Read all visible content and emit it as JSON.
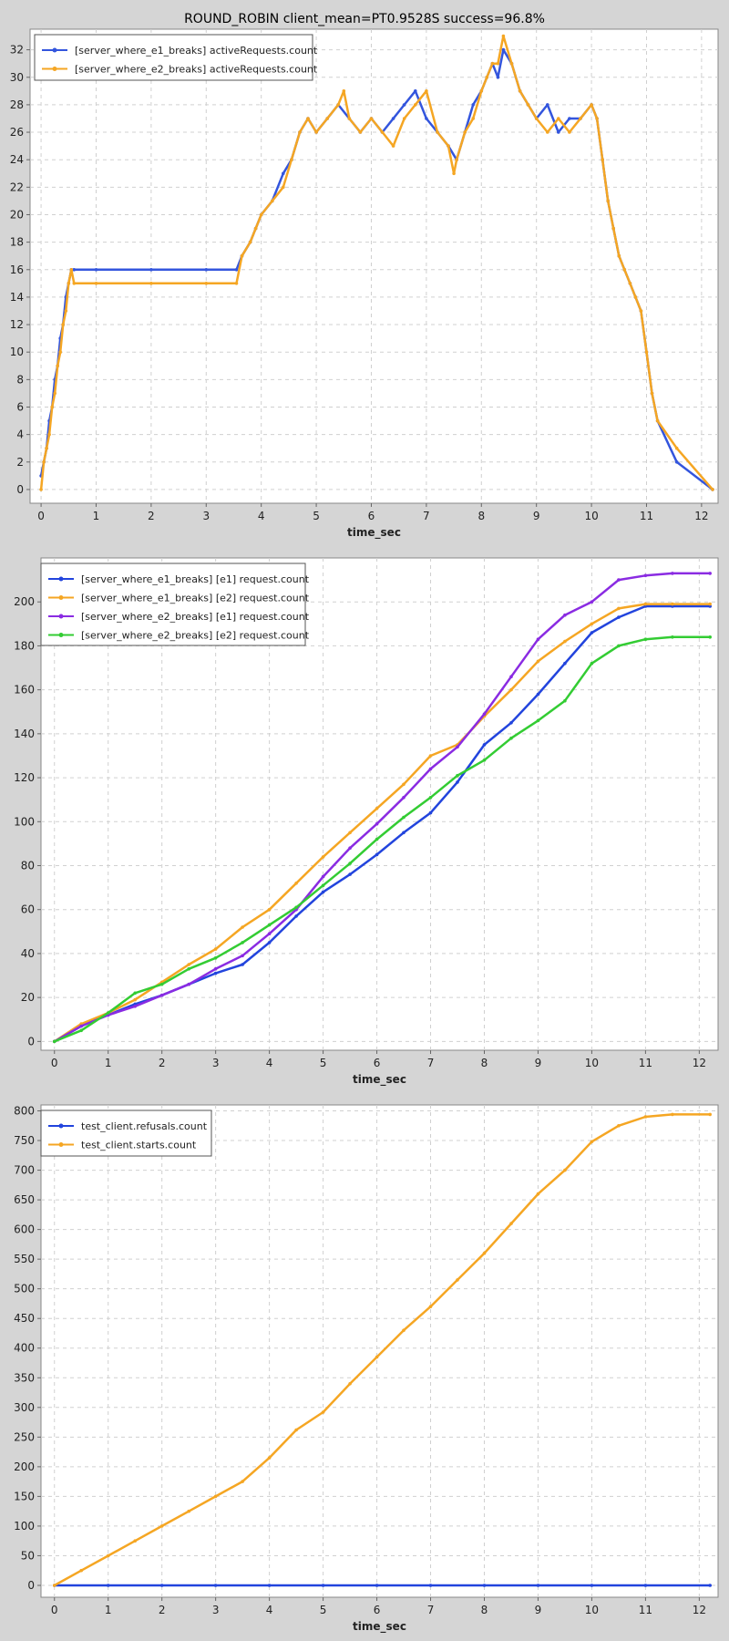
{
  "title": "ROUND_ROBIN client_mean=PT0.9528S success=96.8%",
  "chart_data": [
    {
      "type": "line",
      "xlabel": "time_sec",
      "ylabel": "",
      "xlim": [
        -0.2,
        12.3
      ],
      "ylim": [
        -1,
        33.5
      ],
      "xticks": [
        0,
        1,
        2,
        3,
        4,
        5,
        6,
        7,
        8,
        9,
        10,
        11,
        12
      ],
      "yticks": [
        0,
        2,
        4,
        6,
        8,
        10,
        12,
        14,
        16,
        18,
        20,
        22,
        24,
        26,
        28,
        30,
        32
      ],
      "grid": true,
      "legend_position": "top-left",
      "series": [
        {
          "name": "[server_where_e1_breaks] activeRequests.count",
          "color": "#3355dd",
          "x": [
            0,
            0.05,
            0.1,
            0.15,
            0.2,
            0.25,
            0.3,
            0.35,
            0.4,
            0.45,
            0.5,
            0.55,
            0.6,
            1.0,
            2.0,
            3.0,
            3.55,
            3.65,
            3.8,
            3.9,
            4.0,
            4.2,
            4.4,
            4.55,
            4.7,
            4.85,
            5.0,
            5.2,
            5.4,
            5.6,
            5.8,
            6.0,
            6.2,
            6.4,
            6.6,
            6.8,
            7.0,
            7.2,
            7.4,
            7.55,
            7.7,
            7.85,
            8.0,
            8.1,
            8.2,
            8.3,
            8.4,
            8.55,
            8.7,
            8.85,
            9.0,
            9.2,
            9.4,
            9.6,
            9.8,
            10.0,
            10.1,
            10.2,
            10.3,
            10.4,
            10.5,
            10.6,
            10.7,
            10.8,
            10.9,
            11.0,
            11.1,
            11.2,
            11.55,
            12.2
          ],
          "y": [
            1,
            2,
            3,
            5,
            6,
            8,
            9,
            11,
            12,
            14,
            15,
            16,
            16,
            16,
            16,
            16,
            16,
            17,
            18,
            19,
            20,
            21,
            23,
            24,
            26,
            27,
            26,
            27,
            28,
            27,
            26,
            27,
            26,
            27,
            28,
            29,
            27,
            26,
            25,
            24,
            26,
            28,
            29,
            30,
            31,
            30,
            32,
            31,
            29,
            28,
            27,
            28,
            26,
            27,
            27,
            28,
            27,
            24,
            21,
            19,
            17,
            16,
            15,
            14,
            13,
            10,
            7,
            5,
            2,
            0
          ]
        },
        {
          "name": "[server_where_e2_breaks] activeRequests.count",
          "color": "#f5a623",
          "x": [
            0,
            0.05,
            0.1,
            0.15,
            0.2,
            0.25,
            0.3,
            0.35,
            0.4,
            0.45,
            0.5,
            0.55,
            0.6,
            1.0,
            2.0,
            3.0,
            3.55,
            3.65,
            3.8,
            3.9,
            4.0,
            4.2,
            4.4,
            4.55,
            4.7,
            4.85,
            5.0,
            5.2,
            5.4,
            5.5,
            5.6,
            5.8,
            6.0,
            6.2,
            6.4,
            6.6,
            6.8,
            7.0,
            7.2,
            7.4,
            7.5,
            7.55,
            7.7,
            7.85,
            8.0,
            8.1,
            8.2,
            8.3,
            8.4,
            8.55,
            8.7,
            8.85,
            9.0,
            9.2,
            9.4,
            9.6,
            9.8,
            10.0,
            10.1,
            10.2,
            10.3,
            10.4,
            10.5,
            10.6,
            10.7,
            10.8,
            10.9,
            11.0,
            11.1,
            11.2,
            11.55,
            12.2
          ],
          "y": [
            0,
            2,
            3,
            4,
            6,
            7,
            9,
            10,
            12,
            13,
            15,
            16,
            15,
            15,
            15,
            15,
            15,
            17,
            18,
            19,
            20,
            21,
            22,
            24,
            26,
            27,
            26,
            27,
            28,
            29,
            27,
            26,
            27,
            26,
            25,
            27,
            28,
            29,
            26,
            25,
            23,
            24,
            26,
            27,
            29,
            30,
            31,
            31,
            33,
            31,
            29,
            28,
            27,
            26,
            27,
            26,
            27,
            28,
            27,
            24,
            21,
            19,
            17,
            16,
            15,
            14,
            13,
            10,
            7,
            5,
            3,
            0
          ]
        }
      ]
    },
    {
      "type": "line",
      "xlabel": "time_sec",
      "ylabel": "",
      "xlim": [
        -0.25,
        12.35
      ],
      "ylim": [
        -4,
        220
      ],
      "xticks": [
        0,
        1,
        2,
        3,
        4,
        5,
        6,
        7,
        8,
        9,
        10,
        11,
        12
      ],
      "yticks": [
        0,
        20,
        40,
        60,
        80,
        100,
        120,
        140,
        160,
        180,
        200
      ],
      "grid": true,
      "legend_position": "top-left",
      "series": [
        {
          "name": "[server_where_e1_breaks] [e1] request.count",
          "color": "#2244dd",
          "x": [
            0,
            0.5,
            1,
            1.5,
            2,
            2.5,
            3,
            3.5,
            4,
            4.5,
            5,
            5.5,
            6,
            6.5,
            7,
            7.5,
            8,
            8.5,
            9,
            9.5,
            10,
            10.5,
            11,
            11.5,
            12.2
          ],
          "y": [
            0,
            7,
            12,
            17,
            21,
            26,
            31,
            35,
            45,
            57,
            68,
            76,
            85,
            95,
            104,
            118,
            135,
            145,
            158,
            172,
            186,
            193,
            198,
            198,
            198
          ]
        },
        {
          "name": "[server_where_e1_breaks] [e2] request.count",
          "color": "#f5a623",
          "x": [
            0,
            0.5,
            1,
            1.5,
            2,
            2.5,
            3,
            3.5,
            4,
            4.5,
            5,
            5.5,
            6,
            6.5,
            7,
            7.5,
            8,
            8.5,
            9,
            9.5,
            10,
            10.5,
            11,
            11.5,
            12.2
          ],
          "y": [
            0,
            8,
            13,
            19,
            27,
            35,
            42,
            52,
            60,
            72,
            84,
            95,
            106,
            117,
            130,
            135,
            148,
            160,
            173,
            182,
            190,
            197,
            199,
            199,
            199
          ]
        },
        {
          "name": "[server_where_e2_breaks] [e1] request.count",
          "color": "#8a2be2",
          "x": [
            0,
            0.5,
            1,
            1.5,
            2,
            2.5,
            3,
            3.5,
            4,
            4.5,
            5,
            5.5,
            6,
            6.5,
            7,
            7.5,
            8,
            8.5,
            9,
            9.5,
            10,
            10.5,
            11,
            11.5,
            12.2
          ],
          "y": [
            0,
            7,
            12,
            16,
            21,
            26,
            33,
            39,
            49,
            60,
            75,
            88,
            99,
            111,
            124,
            134,
            149,
            166,
            183,
            194,
            200,
            210,
            212,
            213,
            213
          ]
        },
        {
          "name": "[server_where_e2_breaks] [e2] request.count",
          "color": "#33cc33",
          "x": [
            0,
            0.5,
            1,
            1.5,
            2,
            2.5,
            3,
            3.5,
            4,
            4.5,
            5,
            5.5,
            6,
            6.5,
            7,
            7.5,
            8,
            8.5,
            9,
            9.5,
            10,
            10.5,
            11,
            11.5,
            12.2
          ],
          "y": [
            0,
            5,
            13,
            22,
            26,
            33,
            38,
            45,
            53,
            61,
            71,
            81,
            92,
            102,
            111,
            121,
            128,
            138,
            146,
            155,
            172,
            180,
            183,
            184,
            184
          ]
        }
      ]
    },
    {
      "type": "line",
      "xlabel": "time_sec",
      "ylabel": "",
      "xlim": [
        -0.25,
        12.35
      ],
      "ylim": [
        -20,
        810
      ],
      "xticks": [
        0,
        1,
        2,
        3,
        4,
        5,
        6,
        7,
        8,
        9,
        10,
        11,
        12
      ],
      "yticks": [
        0,
        50,
        100,
        150,
        200,
        250,
        300,
        350,
        400,
        450,
        500,
        550,
        600,
        650,
        700,
        750,
        800
      ],
      "grid": true,
      "legend_position": "top-left",
      "series": [
        {
          "name": "test_client.refusals.count",
          "color": "#2244dd",
          "x": [
            0,
            1,
            2,
            3,
            4,
            5,
            6,
            7,
            8,
            9,
            10,
            11,
            12.2
          ],
          "y": [
            0,
            0,
            0,
            0,
            0,
            0,
            0,
            0,
            0,
            0,
            0,
            0,
            0
          ]
        },
        {
          "name": "test_client.starts.count",
          "color": "#f5a623",
          "x": [
            0,
            0.5,
            1,
            1.5,
            2,
            2.5,
            3,
            3.5,
            4,
            4.5,
            5,
            5.5,
            6,
            6.5,
            7,
            7.5,
            8,
            8.5,
            9,
            9.5,
            10,
            10.5,
            11,
            11.5,
            12.2
          ],
          "y": [
            0,
            25,
            50,
            75,
            100,
            125,
            150,
            175,
            215,
            262,
            292,
            340,
            385,
            430,
            470,
            515,
            560,
            610,
            660,
            700,
            748,
            775,
            790,
            794,
            794
          ]
        }
      ]
    }
  ]
}
